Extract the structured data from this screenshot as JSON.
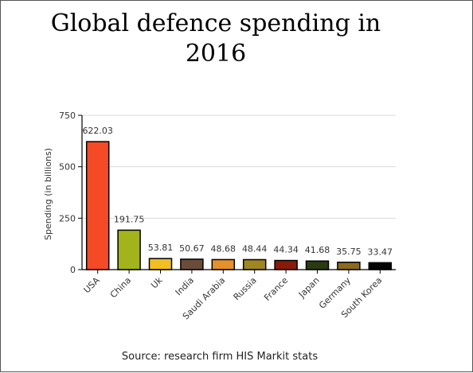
{
  "chart_data": {
    "type": "bar",
    "title": "Global defence spending in 2016",
    "ylabel": "Spending (in billions)",
    "xlabel": "",
    "ylim": [
      0,
      750
    ],
    "yticks": [
      0,
      250,
      500,
      750
    ],
    "grid": true,
    "categories": [
      "USA",
      "China",
      "Uk",
      "India",
      "Saudi Arabia",
      "Russia",
      "France",
      "Japan",
      "Germany",
      "South Korea"
    ],
    "values": [
      622.03,
      191.75,
      53.81,
      50.67,
      48.68,
      48.44,
      44.34,
      41.68,
      35.75,
      33.47
    ],
    "value_labels": [
      "622.03",
      "191.75",
      "53.81",
      "50.67",
      "48.68",
      "48.44",
      "44.34",
      "41.68",
      "35.75",
      "33.47"
    ],
    "colors": [
      "#f44a25",
      "#a3b31b",
      "#f2bf23",
      "#6b4c3a",
      "#e4902b",
      "#a08620",
      "#8a1a08",
      "#2a3a12",
      "#8c6a1c",
      "#050505"
    ],
    "source": "Source: research firm HIS Markit stats"
  }
}
